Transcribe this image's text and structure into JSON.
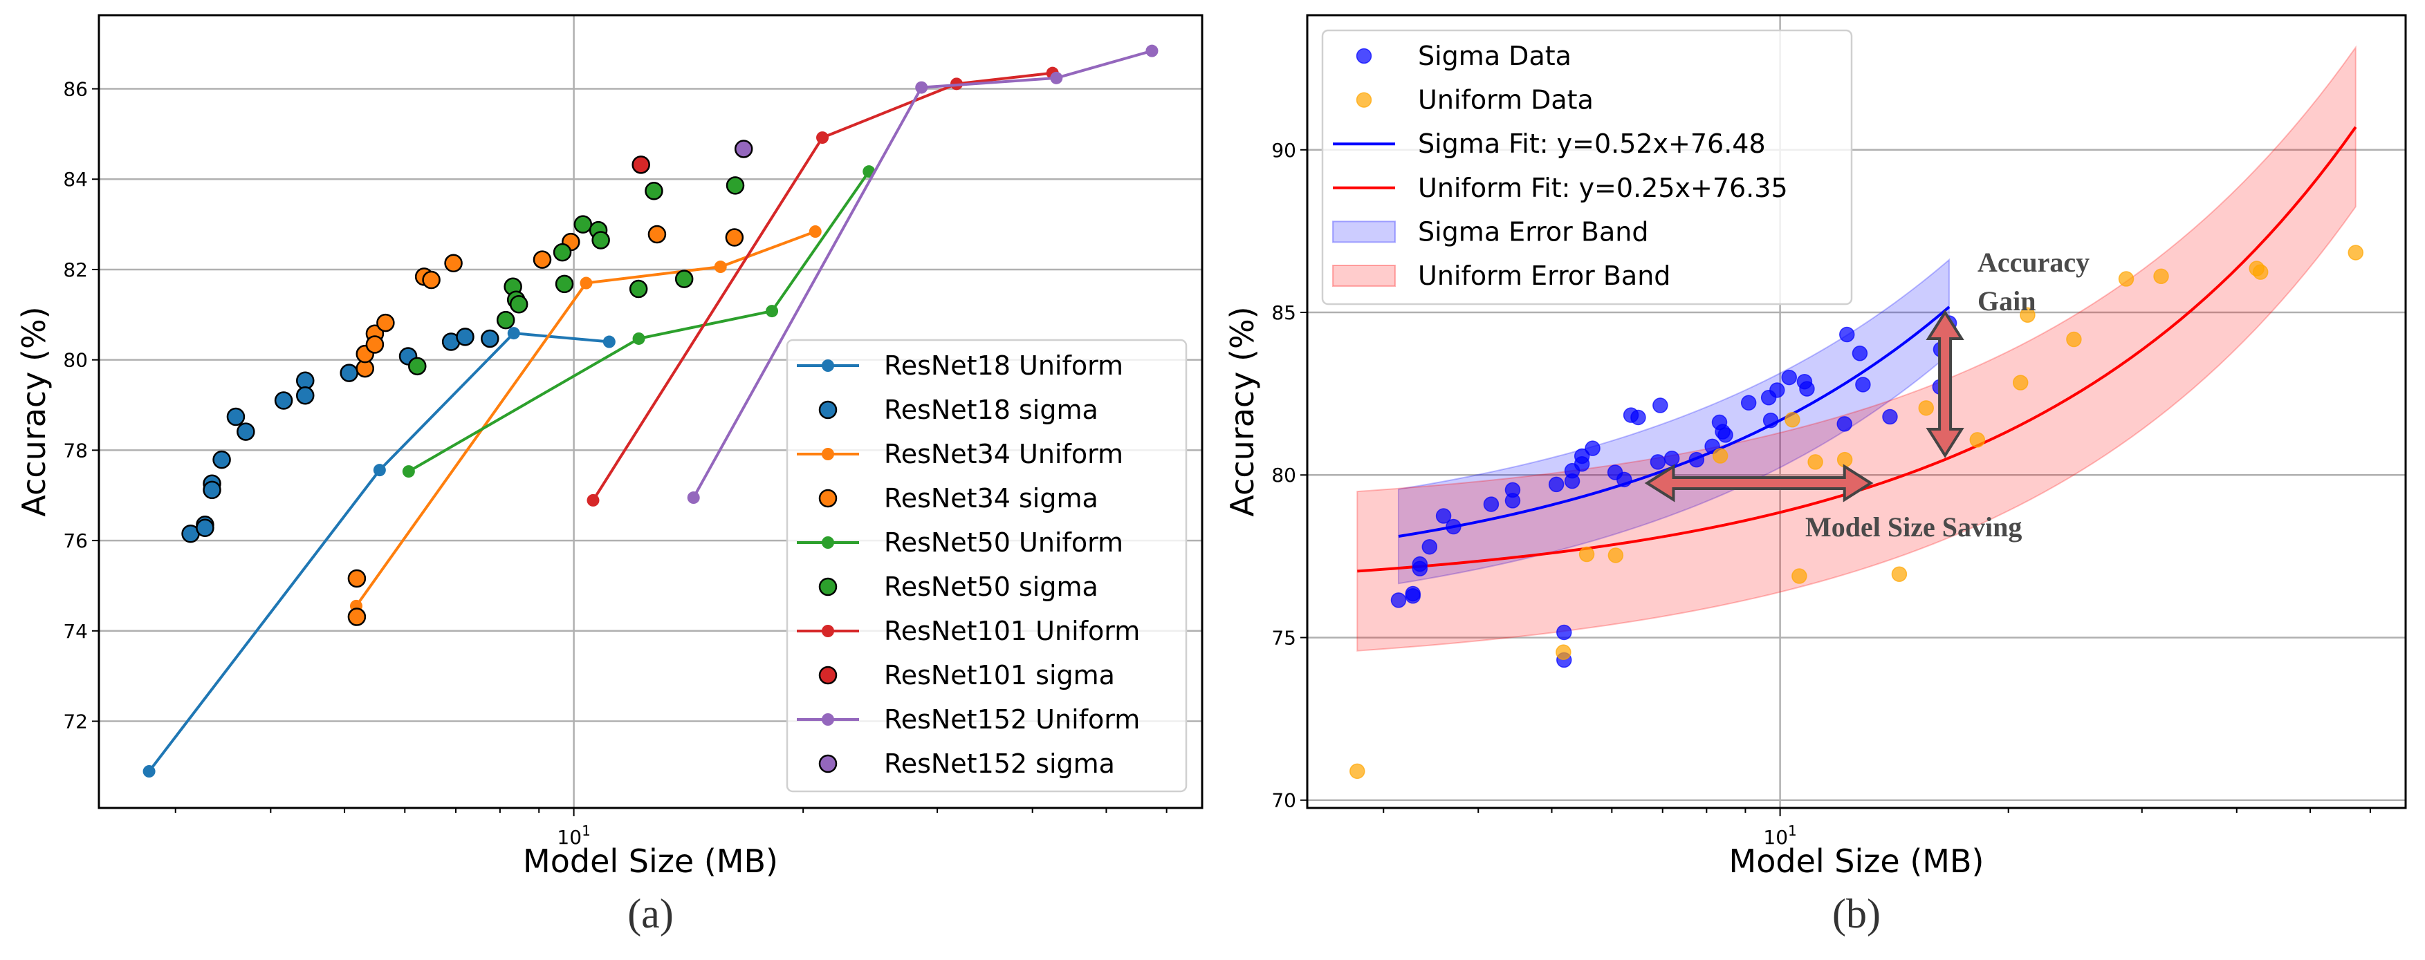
{
  "chart_data": [
    {
      "type": "line",
      "caption": "(a)",
      "title": "",
      "xlabel": "Model Size (MB)",
      "ylabel": "Accuracy (%)",
      "xscale": "log",
      "xlim": [
        2.38,
        66.8
      ],
      "ylim": [
        70.08,
        87.63
      ],
      "xticks": [
        10
      ],
      "xtick_labels": [
        {
          "base": "10",
          "exp": "1"
        }
      ],
      "xminor_ticks": [
        3,
        4,
        5,
        6,
        7,
        8,
        9,
        20,
        30,
        40,
        50,
        60
      ],
      "yticks": [
        72,
        74,
        76,
        78,
        80,
        82,
        84,
        86
      ],
      "grid": true,
      "legend": "lower-right",
      "series": [
        {
          "name": "ResNet18 Uniform",
          "kind": "line",
          "color": "#1f77b4",
          "x": [
            2.77,
            5.56,
            8.34,
            11.13
          ],
          "y": [
            70.89,
            77.56,
            80.59,
            80.4
          ]
        },
        {
          "name": "ResNet18 sigma",
          "kind": "scatter",
          "color": "#1f77b4",
          "x": [
            3.14,
            3.28,
            3.28,
            3.35,
            3.35,
            3.45,
            3.6,
            3.71,
            4.16,
            4.44,
            4.44,
            5.07,
            6.06,
            6.9,
            7.2,
            7.76
          ],
          "y": [
            76.15,
            76.35,
            76.28,
            77.26,
            77.12,
            77.79,
            78.74,
            78.41,
            79.1,
            79.54,
            79.21,
            79.71,
            80.08,
            80.4,
            80.51,
            80.47
          ]
        },
        {
          "name": "ResNet34 Uniform",
          "kind": "line",
          "color": "#ff7f0e",
          "x": [
            5.18,
            10.38,
            15.58,
            20.75
          ],
          "y": [
            74.55,
            81.7,
            82.06,
            82.84
          ]
        },
        {
          "name": "ResNet34 sigma",
          "kind": "scatter",
          "color": "#ff7f0e",
          "x": [
            5.19,
            5.19,
            5.32,
            5.32,
            5.48,
            5.48,
            5.66,
            6.36,
            6.5,
            6.95,
            9.09,
            9.91,
            12.86,
            16.25
          ],
          "y": [
            75.16,
            74.31,
            79.81,
            80.13,
            80.58,
            80.34,
            80.82,
            81.84,
            81.77,
            82.14,
            82.22,
            82.61,
            82.78,
            82.71
          ]
        },
        {
          "name": "ResNet50 Uniform",
          "kind": "line",
          "color": "#2ca02c",
          "x": [
            6.07,
            12.17,
            18.2,
            24.4
          ],
          "y": [
            77.53,
            80.47,
            81.08,
            84.17
          ]
        },
        {
          "name": "ResNet50 sigma",
          "kind": "scatter",
          "color": "#2ca02c",
          "x": [
            6.23,
            8.14,
            8.32,
            8.4,
            8.47,
            9.66,
            9.72,
            10.28,
            10.77,
            10.85,
            12.16,
            12.74,
            13.96,
            16.29
          ],
          "y": [
            79.86,
            80.88,
            81.62,
            81.33,
            81.23,
            82.38,
            81.68,
            83.0,
            82.87,
            82.65,
            81.57,
            83.74,
            81.79,
            83.86
          ]
        },
        {
          "name": "ResNet101 Uniform",
          "kind": "line",
          "color": "#d62728",
          "x": [
            10.6,
            21.2,
            31.8,
            42.5
          ],
          "y": [
            76.89,
            84.92,
            86.11,
            86.35
          ]
        },
        {
          "name": "ResNet101 sigma",
          "kind": "scatter",
          "color": "#d62728",
          "x": [
            12.25
          ],
          "y": [
            84.32
          ]
        },
        {
          "name": "ResNet152 Uniform",
          "kind": "line",
          "color": "#9467bd",
          "x": [
            14.36,
            28.6,
            43.0,
            57.4
          ],
          "y": [
            76.95,
            86.03,
            86.24,
            86.84
          ]
        },
        {
          "name": "ResNet152 sigma",
          "kind": "scatter",
          "color": "#9467bd",
          "x": [
            16.71
          ],
          "y": [
            84.67
          ]
        }
      ]
    },
    {
      "type": "scatter",
      "caption": "(b)",
      "title": "",
      "xlabel": "Model Size (MB)",
      "ylabel": "Accuracy (%)",
      "xscale": "log",
      "xlim": [
        2.38,
        66.8
      ],
      "ylim": [
        69.76,
        94.14
      ],
      "xticks": [
        10
      ],
      "xtick_labels": [
        {
          "base": "10",
          "exp": "1"
        }
      ],
      "xminor_ticks": [
        3,
        4,
        5,
        6,
        7,
        8,
        9,
        20,
        30,
        40,
        50,
        60
      ],
      "yticks": [
        70,
        75,
        80,
        85,
        90
      ],
      "grid": true,
      "legend": "upper-left",
      "series": [
        {
          "name": "Sigma Data",
          "kind": "scatter",
          "color": "#0000ff",
          "alpha": 0.7,
          "x": [
            3.14,
            3.28,
            3.28,
            3.35,
            3.35,
            3.45,
            3.6,
            3.71,
            4.16,
            4.44,
            4.44,
            5.07,
            6.06,
            6.9,
            7.2,
            7.76,
            5.19,
            5.19,
            5.32,
            5.32,
            5.48,
            5.48,
            5.66,
            6.36,
            6.5,
            6.95,
            9.09,
            9.91,
            12.86,
            16.25,
            6.23,
            8.14,
            8.32,
            8.4,
            8.47,
            9.66,
            9.72,
            10.28,
            10.77,
            10.85,
            12.16,
            12.74,
            13.96,
            16.29,
            12.25,
            16.71
          ],
          "y": [
            76.15,
            76.35,
            76.28,
            77.26,
            77.12,
            77.79,
            78.74,
            78.41,
            79.1,
            79.54,
            79.21,
            79.71,
            80.08,
            80.4,
            80.51,
            80.47,
            75.16,
            74.31,
            79.81,
            80.13,
            80.58,
            80.34,
            80.82,
            81.84,
            81.77,
            82.14,
            82.22,
            82.61,
            82.78,
            82.71,
            79.86,
            80.88,
            81.62,
            81.33,
            81.23,
            82.38,
            81.68,
            83.0,
            82.87,
            82.65,
            81.57,
            83.74,
            81.79,
            83.86,
            84.32,
            84.67
          ]
        },
        {
          "name": "Uniform Data",
          "kind": "scatter",
          "color": "#ffa500",
          "alpha": 0.7,
          "x": [
            2.77,
            5.56,
            8.34,
            11.13,
            5.18,
            10.38,
            15.58,
            20.75,
            6.07,
            12.17,
            18.2,
            24.4,
            10.6,
            21.2,
            31.8,
            42.5,
            14.36,
            28.6,
            43.0,
            57.4
          ],
          "y": [
            70.89,
            77.56,
            80.59,
            80.4,
            74.55,
            81.7,
            82.06,
            82.84,
            77.53,
            80.47,
            81.08,
            84.17,
            76.89,
            84.92,
            86.11,
            86.35,
            76.95,
            86.03,
            86.24,
            86.84
          ]
        },
        {
          "name": "Sigma Fit: y=0.52x+76.48",
          "kind": "fit",
          "color": "#0000ff",
          "slope": 0.52,
          "intercept": 76.48,
          "x_range": [
            3.14,
            16.71
          ]
        },
        {
          "name": "Uniform Fit: y=0.25x+76.35",
          "kind": "fit",
          "color": "#ff0000",
          "slope": 0.25,
          "intercept": 76.35,
          "x_range": [
            2.77,
            57.4
          ]
        },
        {
          "name": "Sigma Error Band",
          "kind": "band",
          "color": "#0000ff",
          "alpha": 0.2,
          "slope": 0.52,
          "intercept": 76.48,
          "half_width": 1.45,
          "x_range": [
            3.14,
            16.71
          ]
        },
        {
          "name": "Uniform Error Band",
          "kind": "band",
          "color": "#ff0000",
          "alpha": 0.2,
          "slope": 0.25,
          "intercept": 76.35,
          "half_width": 2.45,
          "x_range": [
            2.77,
            57.4
          ]
        }
      ],
      "annotations": [
        {
          "text_lines": [
            "Accuracy",
            "Gain"
          ],
          "arrow": "vertical",
          "x": 16.5,
          "y_from": 80.6,
          "y_to": 85.0,
          "color": "#e06666"
        },
        {
          "text_lines": [
            "Model Size Saving"
          ],
          "arrow": "horizontal",
          "y": 79.75,
          "x_from": 6.68,
          "x_to": 13.17,
          "color": "#e06666"
        }
      ]
    }
  ]
}
